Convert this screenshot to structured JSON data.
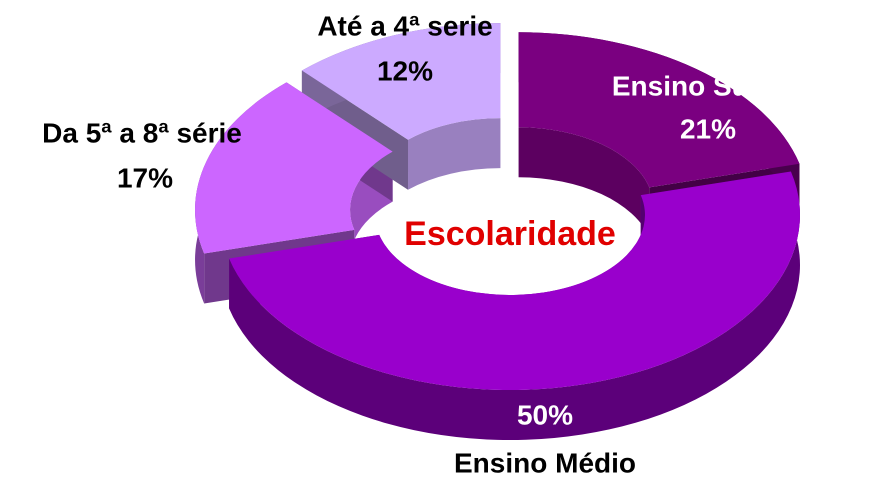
{
  "chart_data": {
    "type": "donut",
    "title": "Escolaridade",
    "categories": [
      "Ensino Superior",
      "Ensino Médio",
      "Da 5ª a 8ª série",
      "Até a 4ª serie"
    ],
    "values": [
      21,
      50,
      17,
      12
    ],
    "value_labels": [
      "21%",
      "50%",
      "17%",
      "12%"
    ],
    "colors": [
      "#7a0080",
      "#9900cc",
      "#cc66ff",
      "#ccaaff"
    ]
  }
}
